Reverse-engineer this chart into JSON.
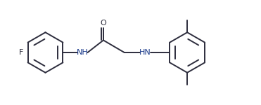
{
  "background_color": "#ffffff",
  "line_color": "#2d2d3d",
  "nh_color": "#1a3a8a",
  "lw": 1.4,
  "figsize": [
    3.71,
    1.5
  ],
  "dpi": 100,
  "xlim": [
    0,
    10.5
  ],
  "ylim": [
    0.5,
    4.5
  ]
}
